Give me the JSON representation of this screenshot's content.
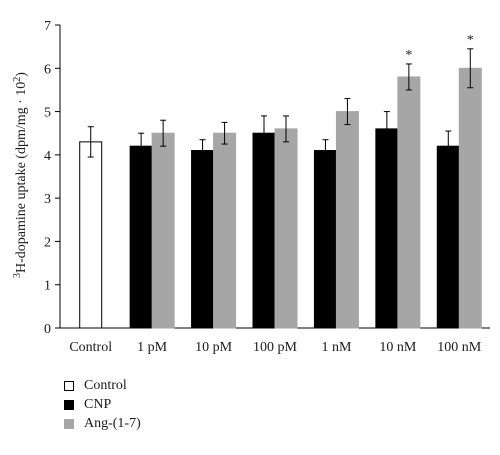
{
  "chart_data": {
    "type": "bar",
    "ylabel_sup1": "3",
    "ylabel_main": "H-dopamine uptake (dpm/mg · 10",
    "ylabel_sup2": "2",
    "ylabel_end": ")",
    "ylim": [
      0,
      7
    ],
    "yticks": [
      "0",
      "1",
      "2",
      "3",
      "4",
      "5",
      "6",
      "7"
    ],
    "categories": [
      "Control",
      "1 pM",
      "10 pM",
      "100 pM",
      "1 nM",
      "10 nM",
      "100 nM"
    ],
    "series": [
      {
        "name": "Control",
        "color": "#ffffff",
        "stroke": "#000000",
        "values": [
          4.3,
          null,
          null,
          null,
          null,
          null,
          null
        ],
        "errors": [
          0.35,
          null,
          null,
          null,
          null,
          null,
          null
        ]
      },
      {
        "name": "CNP",
        "color": "#000000",
        "stroke": "#000000",
        "values": [
          null,
          4.2,
          4.1,
          4.5,
          4.1,
          4.6,
          4.2
        ],
        "errors": [
          null,
          0.3,
          0.25,
          0.4,
          0.25,
          0.4,
          0.35
        ]
      },
      {
        "name": "Ang-(1-7)",
        "color": "#a6a6a6",
        "stroke": "#a6a6a6",
        "values": [
          null,
          4.5,
          4.5,
          4.6,
          5.0,
          5.8,
          6.0
        ],
        "errors": [
          null,
          0.3,
          0.25,
          0.3,
          0.3,
          0.3,
          0.45
        ],
        "significance": [
          null,
          null,
          null,
          null,
          null,
          "*",
          "*"
        ]
      }
    ],
    "grid": false,
    "legend_position": "bottom-left"
  }
}
